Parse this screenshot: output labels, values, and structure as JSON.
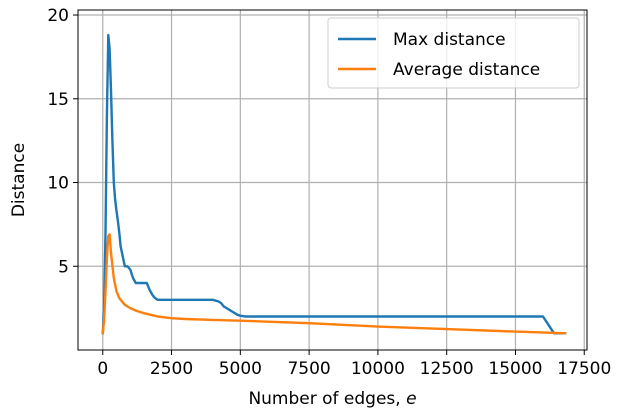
{
  "chart_data": {
    "type": "line",
    "xlabel": "Number of edges, ",
    "xlabel_var": "e",
    "ylabel": "Distance",
    "xlim": [
      -900,
      17600
    ],
    "ylim": [
      0.0,
      20.3
    ],
    "xticks": [
      0,
      2500,
      5000,
      7500,
      10000,
      12500,
      15000,
      17500
    ],
    "xtick_labels": [
      "0",
      "2500",
      "5000",
      "7500",
      "10000",
      "12500",
      "15000",
      "17500"
    ],
    "yticks": [
      5,
      10,
      15,
      20
    ],
    "ytick_labels": [
      "5",
      "10",
      "15",
      "20"
    ],
    "grid": true,
    "legend_position": "upper right",
    "series": [
      {
        "name": "Max distance",
        "color": "#1f77b4",
        "x": [
          0,
          50,
          100,
          150,
          200,
          250,
          300,
          350,
          400,
          450,
          500,
          550,
          600,
          650,
          700,
          800,
          900,
          1000,
          1100,
          1200,
          1300,
          1400,
          1500,
          1600,
          1700,
          1800,
          1900,
          2000,
          2100,
          2200,
          2500,
          3000,
          3500,
          4000,
          4200,
          4300,
          4400,
          4500,
          4600,
          4700,
          4800,
          4900,
          5000,
          5200,
          5500,
          6000,
          8000,
          10000,
          12000,
          14000,
          15000,
          16000,
          16400,
          16800
        ],
        "y": [
          1.0,
          2.5,
          7.0,
          14.0,
          18.8,
          18.0,
          15.5,
          12.5,
          10.0,
          9.0,
          8.3,
          7.7,
          7.0,
          6.2,
          5.8,
          5.0,
          5.0,
          4.8,
          4.3,
          4.0,
          4.0,
          4.0,
          4.0,
          4.0,
          3.6,
          3.3,
          3.1,
          3.0,
          3.0,
          3.0,
          3.0,
          3.0,
          3.0,
          3.0,
          2.9,
          2.8,
          2.6,
          2.5,
          2.4,
          2.3,
          2.2,
          2.1,
          2.05,
          2.0,
          2.0,
          2.0,
          2.0,
          2.0,
          2.0,
          2.0,
          2.0,
          2.0,
          1.0,
          1.0
        ]
      },
      {
        "name": "Average distance",
        "color": "#ff7f0e",
        "x": [
          0,
          50,
          100,
          150,
          200,
          250,
          300,
          400,
          500,
          600,
          700,
          800,
          1000,
          1200,
          1500,
          2000,
          2500,
          3000,
          4000,
          5000,
          7500,
          10000,
          12500,
          15000,
          16800
        ],
        "y": [
          1.0,
          1.8,
          3.5,
          5.5,
          6.8,
          6.9,
          5.8,
          4.3,
          3.5,
          3.1,
          2.9,
          2.7,
          2.5,
          2.35,
          2.2,
          2.0,
          1.9,
          1.85,
          1.8,
          1.75,
          1.6,
          1.4,
          1.25,
          1.1,
          1.0
        ]
      }
    ]
  }
}
